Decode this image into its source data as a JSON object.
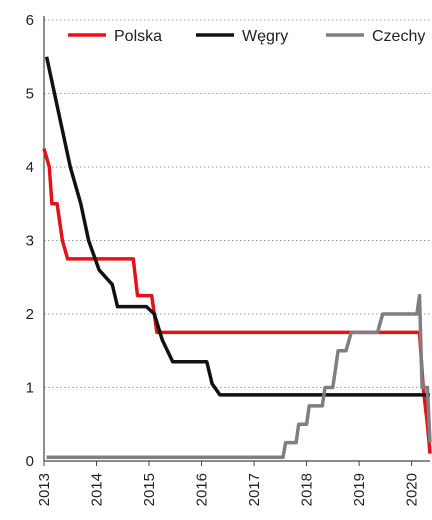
{
  "chart_data": {
    "type": "line",
    "title": "",
    "xlabel": "",
    "ylabel": "",
    "xlim": [
      2013.0,
      2020.35
    ],
    "ylim": [
      0,
      6
    ],
    "grid": "horizontal dotted",
    "legend_position": "top",
    "x_ticks": [
      {
        "label": "2013",
        "value": 2013.0
      },
      {
        "label": "2014",
        "value": 2014.0
      },
      {
        "label": "2015",
        "value": 2015.0
      },
      {
        "label": "2016",
        "value": 2016.0
      },
      {
        "label": "2017",
        "value": 2017.0
      },
      {
        "label": "2018",
        "value": 2018.0
      },
      {
        "label": "2019",
        "value": 2019.0
      },
      {
        "label": "2020",
        "value": 2020.0
      }
    ],
    "y_ticks": [
      "0",
      "1",
      "2",
      "3",
      "4",
      "5",
      "6"
    ],
    "series": [
      {
        "name": "Polska",
        "color": "#e3131b",
        "points": [
          [
            2013.0,
            4.25
          ],
          [
            2013.1,
            4.0
          ],
          [
            2013.15,
            3.5
          ],
          [
            2013.25,
            3.5
          ],
          [
            2013.35,
            3.0
          ],
          [
            2013.45,
            2.75
          ],
          [
            2014.55,
            2.75
          ],
          [
            2014.7,
            2.75
          ],
          [
            2014.78,
            2.25
          ],
          [
            2015.05,
            2.25
          ],
          [
            2015.15,
            1.75
          ],
          [
            2018.0,
            1.75
          ],
          [
            2020.15,
            1.75
          ],
          [
            2020.22,
            1.0
          ],
          [
            2020.3,
            0.5
          ],
          [
            2020.35,
            0.1
          ]
        ]
      },
      {
        "name": "Węgry",
        "color": "#111111",
        "points": [
          [
            2013.05,
            5.5
          ],
          [
            2013.2,
            5.0
          ],
          [
            2013.35,
            4.5
          ],
          [
            2013.5,
            4.0
          ],
          [
            2013.7,
            3.5
          ],
          [
            2013.85,
            3.0
          ],
          [
            2014.05,
            2.6
          ],
          [
            2014.3,
            2.4
          ],
          [
            2014.4,
            2.1
          ],
          [
            2014.95,
            2.1
          ],
          [
            2015.1,
            2.0
          ],
          [
            2015.25,
            1.65
          ],
          [
            2015.45,
            1.35
          ],
          [
            2016.1,
            1.35
          ],
          [
            2016.2,
            1.05
          ],
          [
            2016.35,
            0.9
          ],
          [
            2019.5,
            0.9
          ],
          [
            2020.35,
            0.9
          ]
        ]
      },
      {
        "name": "Czechy",
        "color": "#7f7f7f",
        "points": [
          [
            2013.05,
            0.05
          ],
          [
            2017.55,
            0.05
          ],
          [
            2017.6,
            0.25
          ],
          [
            2017.8,
            0.25
          ],
          [
            2017.85,
            0.5
          ],
          [
            2018.0,
            0.5
          ],
          [
            2018.05,
            0.75
          ],
          [
            2018.3,
            0.75
          ],
          [
            2018.35,
            1.0
          ],
          [
            2018.5,
            1.0
          ],
          [
            2018.6,
            1.5
          ],
          [
            2018.75,
            1.5
          ],
          [
            2018.85,
            1.75
          ],
          [
            2019.35,
            1.75
          ],
          [
            2019.45,
            2.0
          ],
          [
            2020.1,
            2.0
          ],
          [
            2020.15,
            2.25
          ],
          [
            2020.2,
            1.0
          ],
          [
            2020.3,
            1.0
          ],
          [
            2020.35,
            0.25
          ]
        ]
      }
    ]
  }
}
